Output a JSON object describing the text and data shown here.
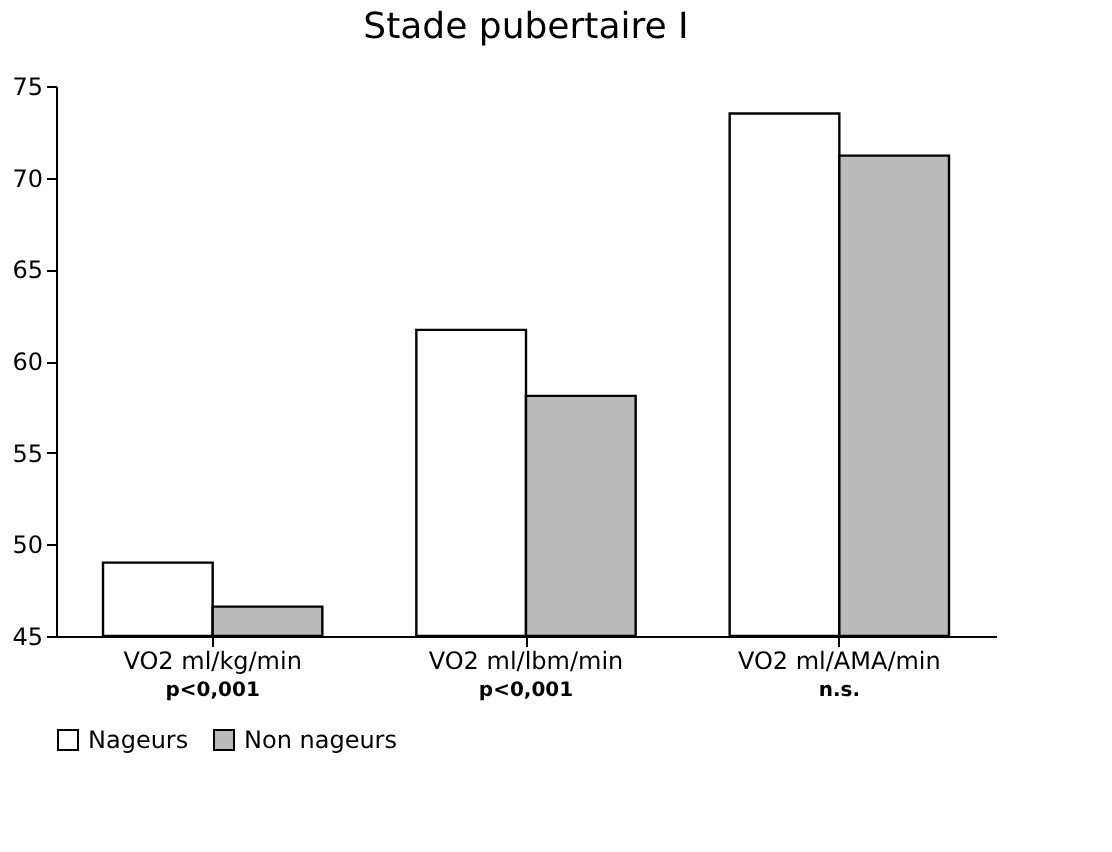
{
  "chart_data": {
    "type": "bar",
    "title": "Stade pubertaire I",
    "categories": [
      "VO2 ml/kg/min",
      "VO2 ml/lbm/min",
      "VO2 ml/AMA/min"
    ],
    "series": [
      {
        "name": "Nageurs",
        "color": "#ffffff",
        "values": [
          49.0,
          61.7,
          73.5
        ]
      },
      {
        "name": "Non nageurs",
        "color": "#bbbbbb",
        "values": [
          46.6,
          58.1,
          71.2
        ]
      }
    ],
    "ylim": [
      45,
      75
    ],
    "yticks": [
      45,
      50,
      55,
      60,
      65,
      70,
      75
    ],
    "annotations": [
      "p<0,001",
      "p<0,001",
      "n.s."
    ],
    "legend": "bottom",
    "grid": false
  }
}
